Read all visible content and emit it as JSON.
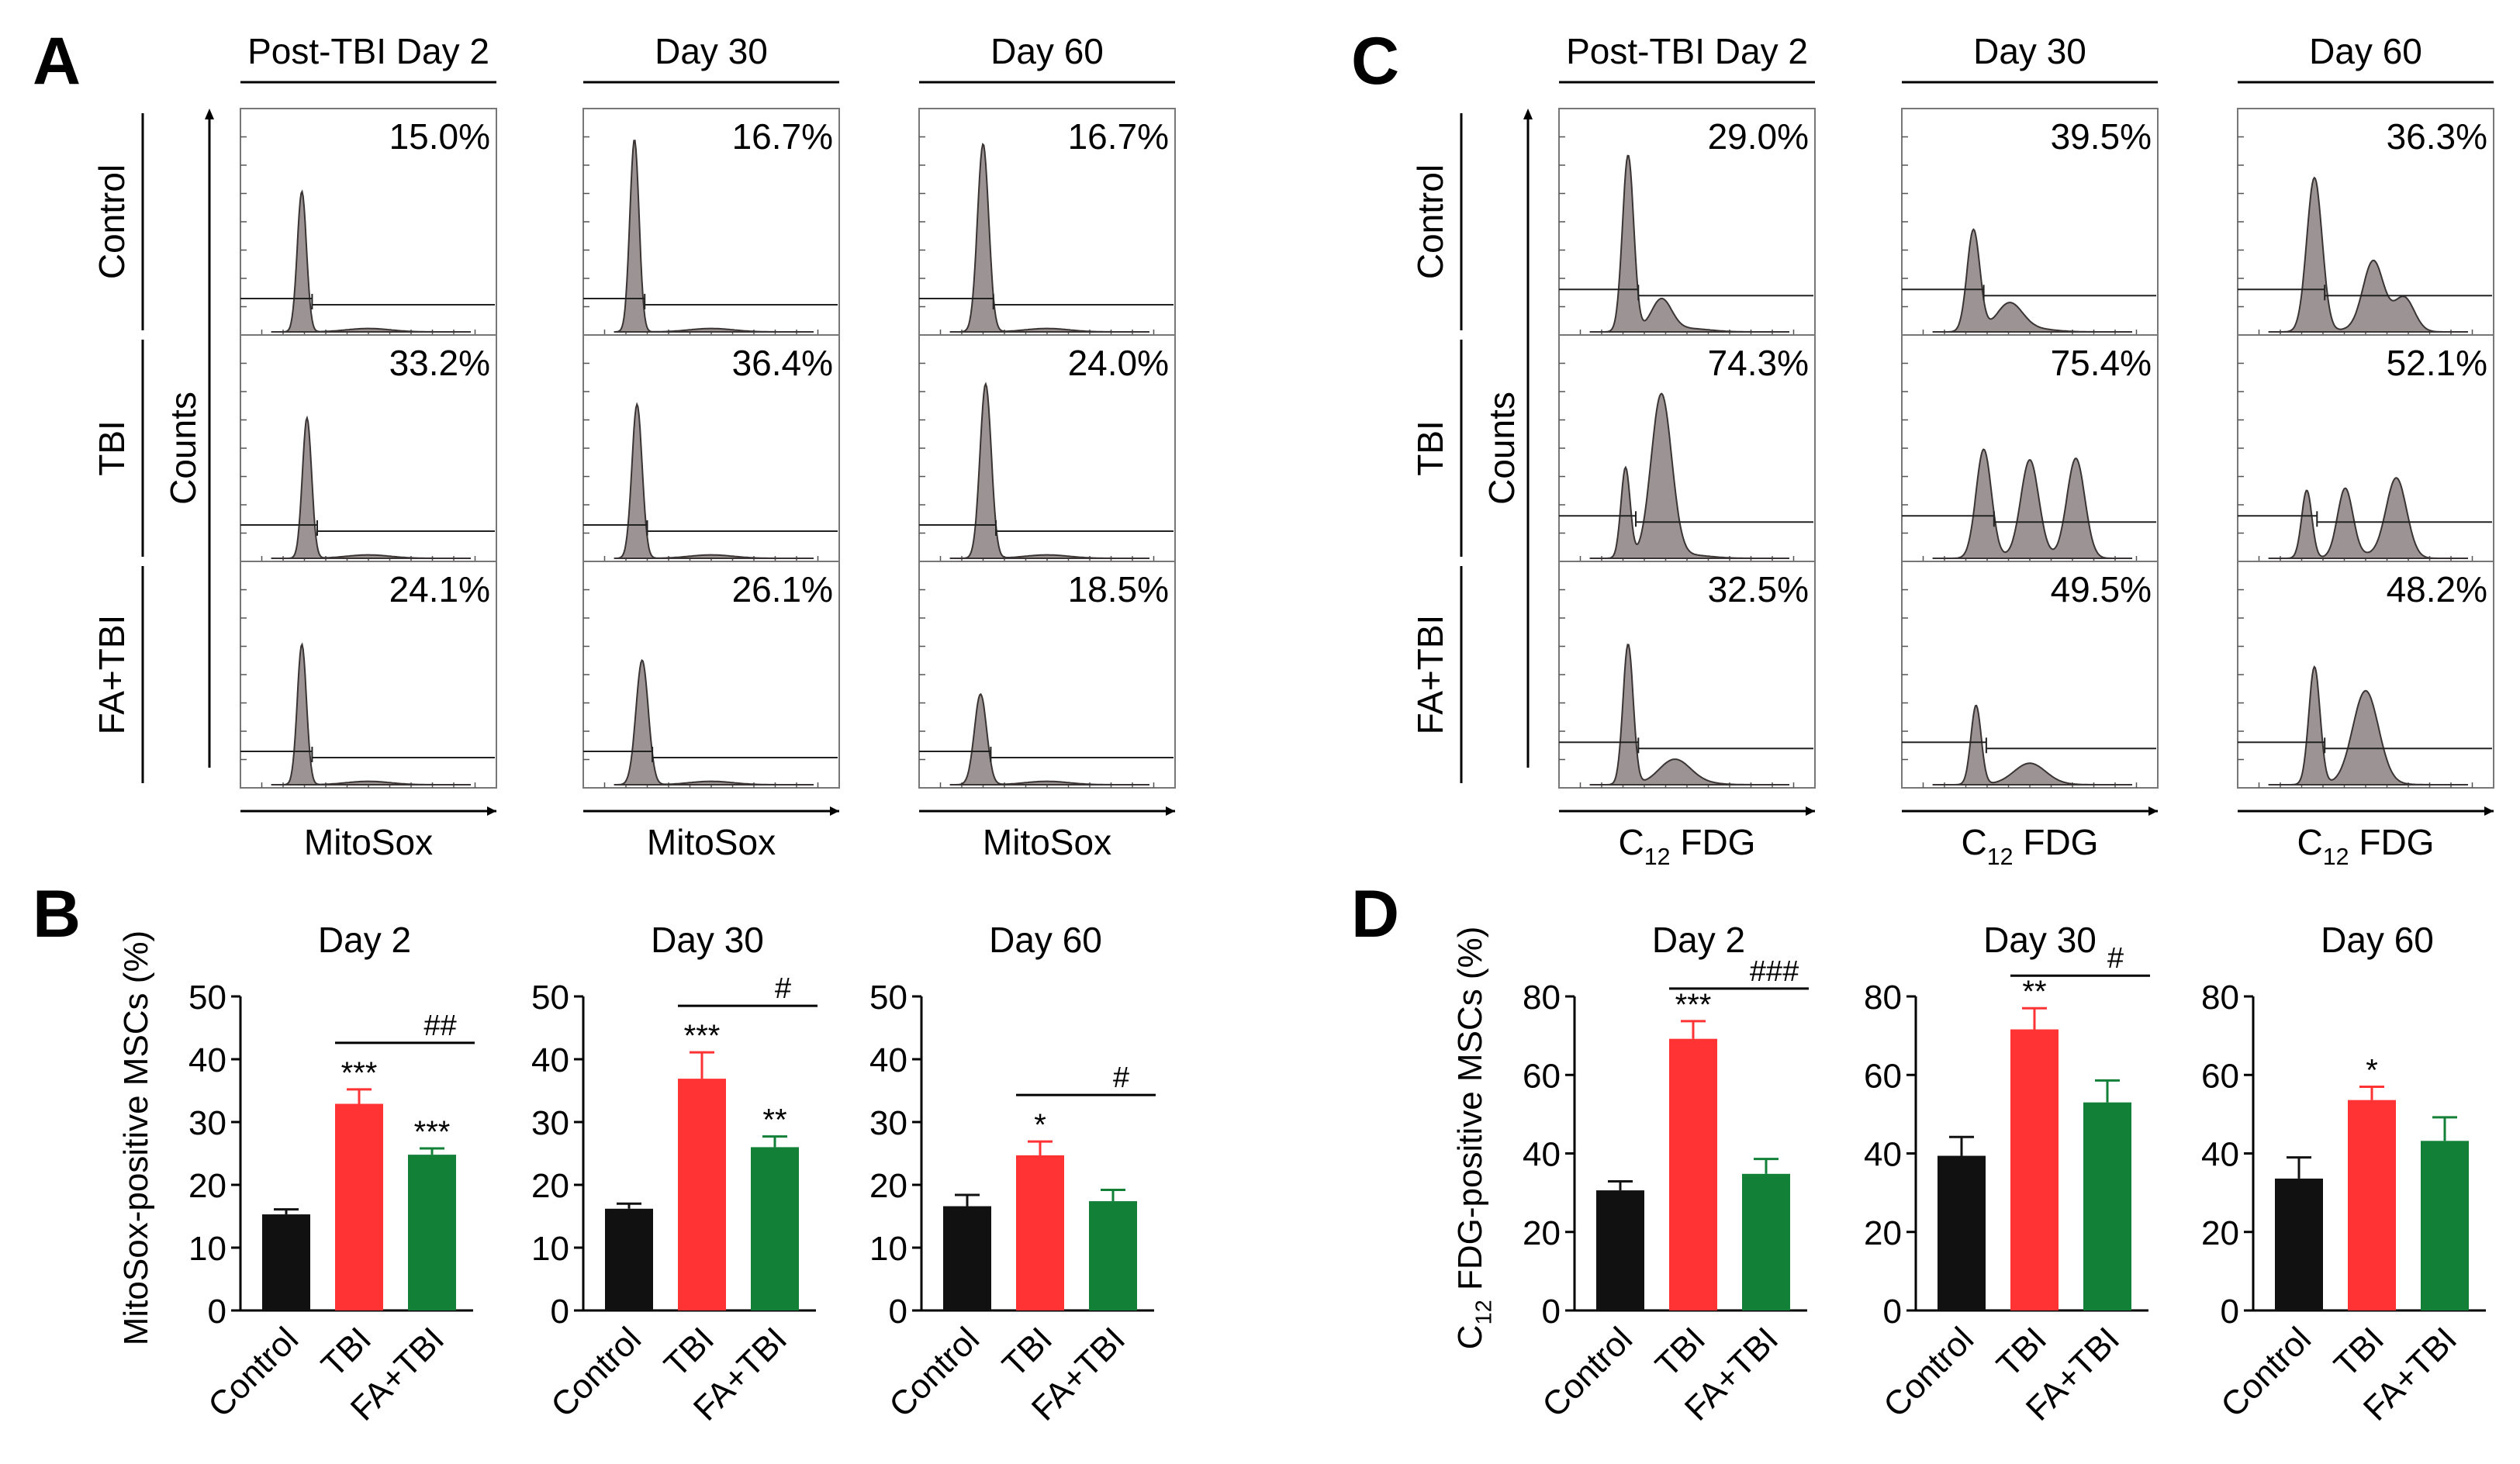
{
  "panel_letters": {
    "A": "A",
    "B": "B",
    "C": "C",
    "D": "D"
  },
  "colors": {
    "Control": "#111111",
    "TBI": "#ff3333",
    "FA+TBI": "#138038",
    "hist": "#9c9494"
  },
  "flow_panels": [
    {
      "letter": "A",
      "x_label": "MitoSox",
      "y_label": "Counts",
      "timepoints": [
        "Post-TBI Day 2",
        "Day 30",
        "Day 60"
      ],
      "row_labels": [
        "Control",
        "TBI",
        "FA+TBI"
      ],
      "percentages": [
        [
          "15.0%",
          "16.7%",
          "16.7%"
        ],
        [
          "33.2%",
          "36.4%",
          "24.0%"
        ],
        [
          "24.1%",
          "26.1%",
          "18.5%"
        ]
      ],
      "histogram_peaks": [
        [
          [
            {
              "pos": 0.24,
              "h": 0.62,
              "w": 0.018
            }
          ],
          [
            {
              "pos": 0.2,
              "h": 0.85,
              "w": 0.018
            }
          ],
          [
            {
              "pos": 0.25,
              "h": 0.83,
              "w": 0.022
            }
          ]
        ],
        [
          [
            {
              "pos": 0.26,
              "h": 0.62,
              "w": 0.018
            }
          ],
          [
            {
              "pos": 0.21,
              "h": 0.68,
              "w": 0.02
            }
          ],
          [
            {
              "pos": 0.26,
              "h": 0.77,
              "w": 0.022
            }
          ]
        ],
        [
          [
            {
              "pos": 0.24,
              "h": 0.62,
              "w": 0.018
            }
          ],
          [
            {
              "pos": 0.23,
              "h": 0.55,
              "w": 0.024
            }
          ],
          [
            {
              "pos": 0.24,
              "h": 0.4,
              "w": 0.024
            }
          ]
        ]
      ]
    },
    {
      "letter": "C",
      "x_label": "C12 FDG",
      "y_label": "Counts",
      "timepoints": [
        "Post-TBI Day 2",
        "Day 30",
        "Day 60"
      ],
      "row_labels": [
        "Control",
        "TBI",
        "FA+TBI"
      ],
      "percentages": [
        [
          "29.0%",
          "39.5%",
          "36.3%"
        ],
        [
          "74.3%",
          "75.4%",
          "52.1%"
        ],
        [
          "32.5%",
          "49.5%",
          "48.2%"
        ]
      ],
      "histogram_peaks": [
        [
          [
            {
              "pos": 0.27,
              "h": 0.78,
              "w": 0.022
            },
            {
              "pos": 0.4,
              "h": 0.14,
              "w": 0.04
            }
          ],
          [
            {
              "pos": 0.28,
              "h": 0.45,
              "w": 0.025
            },
            {
              "pos": 0.42,
              "h": 0.12,
              "w": 0.05
            }
          ],
          [
            {
              "pos": 0.3,
              "h": 0.68,
              "w": 0.03
            },
            {
              "pos": 0.53,
              "h": 0.3,
              "w": 0.04
            },
            {
              "pos": 0.65,
              "h": 0.15,
              "w": 0.04
            }
          ]
        ],
        [
          [
            {
              "pos": 0.26,
              "h": 0.4,
              "w": 0.018
            },
            {
              "pos": 0.4,
              "h": 0.72,
              "w": 0.04
            }
          ],
          [
            {
              "pos": 0.32,
              "h": 0.48,
              "w": 0.03
            },
            {
              "pos": 0.5,
              "h": 0.42,
              "w": 0.035
            },
            {
              "pos": 0.68,
              "h": 0.44,
              "w": 0.035
            }
          ],
          [
            {
              "pos": 0.27,
              "h": 0.3,
              "w": 0.02
            },
            {
              "pos": 0.42,
              "h": 0.3,
              "w": 0.03
            },
            {
              "pos": 0.62,
              "h": 0.35,
              "w": 0.04
            }
          ]
        ],
        [
          [
            {
              "pos": 0.27,
              "h": 0.62,
              "w": 0.02
            },
            {
              "pos": 0.45,
              "h": 0.1,
              "w": 0.06
            }
          ],
          [
            {
              "pos": 0.29,
              "h": 0.35,
              "w": 0.02
            },
            {
              "pos": 0.5,
              "h": 0.08,
              "w": 0.06
            }
          ],
          [
            {
              "pos": 0.3,
              "h": 0.52,
              "w": 0.022
            },
            {
              "pos": 0.5,
              "h": 0.4,
              "w": 0.05
            }
          ]
        ]
      ]
    }
  ],
  "chart_data": [
    {
      "type": "bar",
      "panel": "B",
      "title": "Day 2",
      "ylabel": "MitoSox-positive MSCs (%)",
      "categories": [
        "Control",
        "TBI",
        "FA+TBI"
      ],
      "values": [
        15.3,
        32.9,
        24.8
      ],
      "errors": [
        0.8,
        2.3,
        1.0
      ],
      "ylim": [
        0,
        50
      ],
      "yticks": [
        0,
        10,
        20,
        30,
        40,
        50
      ],
      "stars": [
        "",
        "***",
        "***"
      ],
      "bracket_label": "##"
    },
    {
      "type": "bar",
      "panel": "B",
      "title": "Day 30",
      "ylabel": "",
      "categories": [
        "Control",
        "TBI",
        "FA+TBI"
      ],
      "values": [
        16.2,
        36.9,
        26.0
      ],
      "errors": [
        0.8,
        4.2,
        1.7
      ],
      "ylim": [
        0,
        50
      ],
      "yticks": [
        0,
        10,
        20,
        30,
        40,
        50
      ],
      "stars": [
        "",
        "***",
        "**"
      ],
      "bracket_label": "#"
    },
    {
      "type": "bar",
      "panel": "B",
      "title": "Day 60",
      "ylabel": "",
      "categories": [
        "Control",
        "TBI",
        "FA+TBI"
      ],
      "values": [
        16.6,
        24.7,
        17.4
      ],
      "errors": [
        1.8,
        2.2,
        1.8
      ],
      "ylim": [
        0,
        50
      ],
      "yticks": [
        0,
        10,
        20,
        30,
        40,
        50
      ],
      "stars": [
        "",
        "*",
        ""
      ],
      "bracket_label": "#"
    },
    {
      "type": "bar",
      "panel": "D",
      "title": "Day 2",
      "ylabel": "C12 FDG-positive MSCs (%)",
      "categories": [
        "Control",
        "TBI",
        "FA+TBI"
      ],
      "values": [
        30.6,
        69.2,
        34.8
      ],
      "errors": [
        2.3,
        4.5,
        3.8
      ],
      "ylim": [
        0,
        80
      ],
      "yticks": [
        0,
        20,
        40,
        60,
        80
      ],
      "stars": [
        "",
        "***",
        ""
      ],
      "bracket_label": "###"
    },
    {
      "type": "bar",
      "panel": "D",
      "title": "Day 30",
      "ylabel": "",
      "categories": [
        "Control",
        "TBI",
        "FA+TBI"
      ],
      "values": [
        39.4,
        71.6,
        53.0
      ],
      "errors": [
        4.8,
        5.4,
        5.6
      ],
      "ylim": [
        0,
        80
      ],
      "yticks": [
        0,
        20,
        40,
        60,
        80
      ],
      "stars": [
        "",
        "**",
        ""
      ],
      "bracket_label": "#"
    },
    {
      "type": "bar",
      "panel": "D",
      "title": "Day 60",
      "ylabel": "",
      "categories": [
        "Control",
        "TBI",
        "FA+TBI"
      ],
      "values": [
        33.6,
        53.6,
        43.2
      ],
      "errors": [
        5.4,
        3.4,
        6.0
      ],
      "ylim": [
        0,
        80
      ],
      "yticks": [
        0,
        20,
        40,
        60,
        80
      ],
      "stars": [
        "",
        "*",
        ""
      ],
      "bracket_label": ""
    }
  ]
}
